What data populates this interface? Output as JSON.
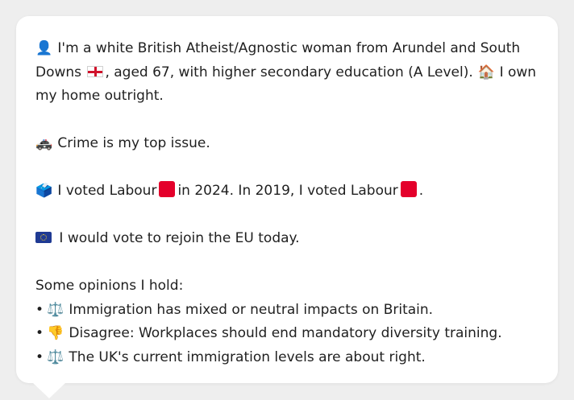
{
  "profile": {
    "intro": {
      "icon": "person-silhouette-icon",
      "text_a": "I'm a white British Atheist/Agnostic woman from Arundel and South Downs",
      "flag": "england-flag-icon",
      "text_b": ", aged 67, with higher secondary education (A Level).",
      "home_icon": "house-icon",
      "text_c": "I own my home outright."
    },
    "issue": {
      "icon": "police-car-icon",
      "text": "Crime is my top issue."
    },
    "vote": {
      "icon": "ballot-box-icon",
      "text_a": "I voted Labour",
      "text_b": "in 2024. In 2019, I voted Labour",
      "text_c": ".",
      "labour_color": "#e4002b"
    },
    "eu": {
      "icon": "eu-flag-icon",
      "text": "I would vote to rejoin the EU today."
    },
    "opinions": {
      "heading": "Some opinions I hold:",
      "bullet": "•",
      "items": [
        {
          "icon": "balance-scale-icon",
          "glyph": "⚖️",
          "text": "Immigration has mixed or neutral impacts on Britain."
        },
        {
          "icon": "thumbs-down-icon",
          "glyph": "👎",
          "text": "Disagree: Workplaces should end mandatory diversity training."
        },
        {
          "icon": "balance-scale-icon",
          "glyph": "⚖️",
          "text": "The UK's current immigration levels are about right."
        }
      ]
    }
  },
  "glyphs": {
    "person": "👤",
    "house": "🏠",
    "police_car": "🚓",
    "ballot": "🗳️"
  }
}
